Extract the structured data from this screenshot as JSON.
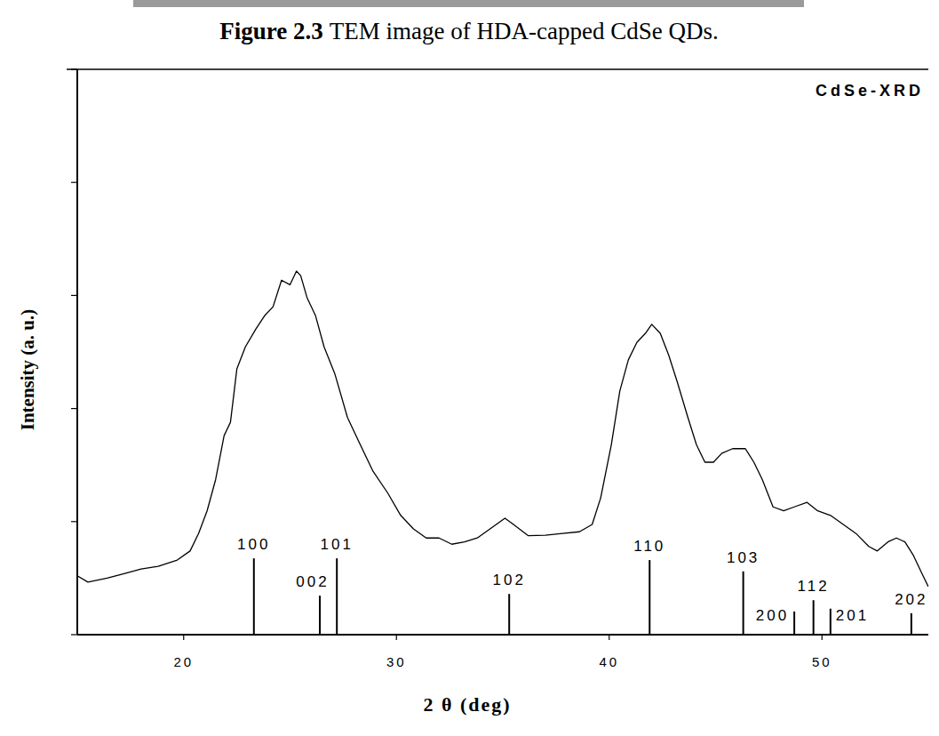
{
  "figure_caption": {
    "label": "Figure 2.3",
    "text": "TEM image of HDA-capped CdSe QDs."
  },
  "chart_data": {
    "type": "line",
    "xlabel": "2 θ (deg)",
    "ylabel": "Intensity (a. u.)",
    "annotations": [
      "CdSe-XRD"
    ],
    "xlim": [
      15,
      55
    ],
    "xticks": [
      20,
      30,
      40,
      50
    ],
    "ylim": [
      0,
      10
    ],
    "yticks": [
      0,
      2,
      4,
      6,
      8,
      10
    ],
    "tick_labels": "x",
    "grid": false,
    "series": [
      {
        "type": "line",
        "color": "#000000",
        "x": [
          15,
          15.5,
          16.4,
          17.2,
          18.0,
          18.8,
          19.7,
          20.3,
          20.7,
          21.1,
          21.5,
          21.9,
          22.2,
          22.5,
          22.9,
          23.4,
          23.8,
          24.2,
          24.6,
          25.0,
          25.3,
          25.5,
          25.8,
          26.2,
          26.6,
          27.1,
          27.7,
          28.3,
          28.9,
          29.6,
          30.2,
          30.8,
          31.4,
          32.0,
          32.6,
          33.2,
          33.8,
          34.4,
          35.1,
          35.5,
          36.2,
          37.0,
          37.8,
          38.6,
          39.2,
          39.6,
          40.1,
          40.5,
          40.9,
          41.3,
          41.7,
          42.0,
          42.4,
          42.8,
          43.2,
          43.7,
          44.1,
          44.5,
          44.9,
          45.3,
          45.8,
          46.4,
          46.8,
          47.2,
          47.7,
          48.2,
          48.7,
          49.3,
          49.8,
          50.4,
          51.0,
          51.6,
          52.2,
          52.6,
          53.1,
          53.5,
          53.9,
          54.3,
          54.7,
          55.0
        ],
        "values": [
          1.04,
          0.93,
          1.0,
          1.08,
          1.16,
          1.21,
          1.32,
          1.48,
          1.79,
          2.19,
          2.74,
          3.52,
          3.76,
          4.7,
          5.09,
          5.41,
          5.64,
          5.8,
          6.27,
          6.19,
          6.43,
          6.35,
          5.96,
          5.64,
          5.09,
          4.62,
          3.84,
          3.36,
          2.89,
          2.5,
          2.11,
          1.87,
          1.71,
          1.71,
          1.6,
          1.64,
          1.71,
          1.87,
          2.06,
          1.95,
          1.75,
          1.76,
          1.79,
          1.82,
          1.95,
          2.42,
          3.36,
          4.31,
          4.86,
          5.17,
          5.33,
          5.49,
          5.33,
          4.94,
          4.47,
          3.84,
          3.36,
          3.05,
          3.05,
          3.21,
          3.29,
          3.29,
          3.05,
          2.74,
          2.26,
          2.19,
          2.26,
          2.34,
          2.19,
          2.11,
          1.95,
          1.79,
          1.56,
          1.48,
          1.64,
          1.71,
          1.64,
          1.4,
          1.08,
          0.85
        ]
      },
      {
        "type": "stick",
        "color": "#000000",
        "x": [
          23.3,
          26.4,
          27.2,
          35.3,
          41.9,
          46.3,
          48.7,
          49.6,
          50.4,
          54.2
        ],
        "values": [
          1.35,
          0.69,
          1.35,
          0.72,
          1.32,
          1.12,
          0.41,
          0.61,
          0.46,
          0.38
        ],
        "labels": [
          "100",
          "002",
          "101",
          "102",
          "110",
          "103",
          "200",
          "112",
          "201",
          "202"
        ]
      }
    ]
  }
}
